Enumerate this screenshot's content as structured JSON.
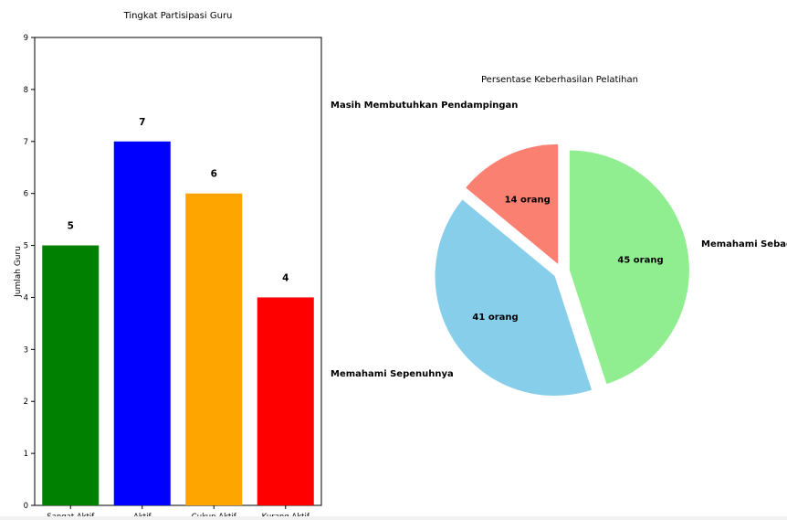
{
  "chart_data": [
    {
      "type": "bar",
      "title": "Tingkat Partisipasi Guru",
      "xlabel": "",
      "ylabel": "Jumlah Guru",
      "categories": [
        "Sangat Aktif",
        "Aktif",
        "Cukup Aktif",
        "Kurang Aktif"
      ],
      "values": [
        5,
        7,
        6,
        4
      ],
      "colors": [
        "#008000",
        "#0000ff",
        "#ffa500",
        "#ff0000"
      ],
      "ylim": [
        0,
        9
      ],
      "yticks": [
        0,
        1,
        2,
        3,
        4,
        5,
        6,
        7,
        8,
        9
      ],
      "data_labels": true,
      "grid": false
    },
    {
      "type": "pie",
      "title": "Persentase Keberhasilan Pelatihan",
      "slices": [
        {
          "label": "Memahami Sebagian",
          "value": 45,
          "value_label": "45 orang",
          "color": "#90ee90",
          "exploded": true
        },
        {
          "label": "Memahami Sepenuhnya",
          "value": 41,
          "value_label": "41 orang",
          "color": "#87ceeb",
          "exploded": true
        },
        {
          "label": "Masih Membutuhkan Pendampingan",
          "value": 14,
          "value_label": "14 orang",
          "color": "#fa8072",
          "exploded": true
        }
      ]
    }
  ]
}
